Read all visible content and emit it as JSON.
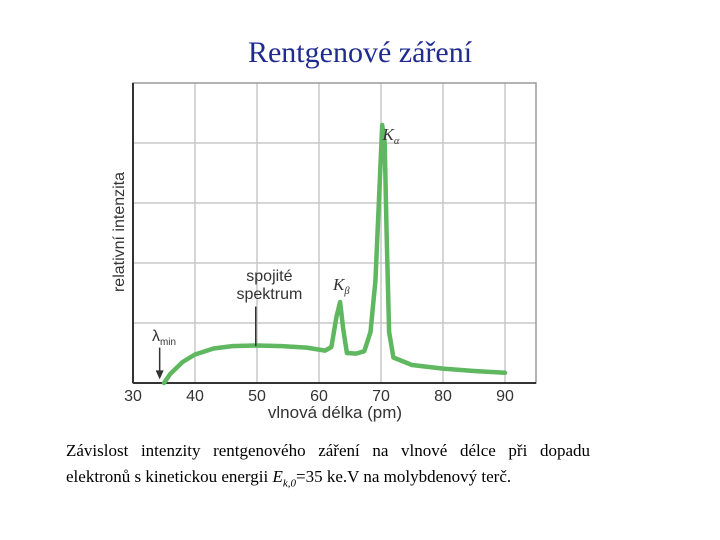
{
  "title": "Rentgenové záření",
  "chart_data": {
    "type": "line",
    "xlabel": "vlnová délka (pm)",
    "ylabel": "relativní intenzita",
    "xlim": [
      30,
      95
    ],
    "ylim": [
      0,
      100
    ],
    "x_ticks": [
      "30",
      "40",
      "50",
      "60",
      "70",
      "80",
      "90"
    ],
    "grid": true,
    "series": [
      {
        "color": "#5fb760",
        "points": [
          [
            35,
            0
          ],
          [
            36,
            3
          ],
          [
            38,
            7
          ],
          [
            40,
            9.5
          ],
          [
            43,
            11.5
          ],
          [
            46,
            12.3
          ],
          [
            50,
            12.5
          ],
          [
            54,
            12.3
          ],
          [
            58,
            11.8
          ],
          [
            61,
            10.8
          ],
          [
            62,
            12
          ],
          [
            62.8,
            22
          ],
          [
            63.4,
            27
          ],
          [
            63.9,
            18
          ],
          [
            64.5,
            10
          ],
          [
            66,
            9.8
          ],
          [
            67.3,
            10.6
          ],
          [
            68.3,
            17
          ],
          [
            69.1,
            34
          ],
          [
            69.7,
            62
          ],
          [
            70.2,
            86
          ],
          [
            70.6,
            80
          ],
          [
            70.9,
            50
          ],
          [
            71.3,
            17
          ],
          [
            72,
            8.5
          ],
          [
            75,
            6
          ],
          [
            80,
            4.8
          ],
          [
            85,
            4
          ],
          [
            90,
            3.4
          ]
        ]
      }
    ],
    "annotations": [
      {
        "text": "spojité",
        "x": 52,
        "y": 34
      },
      {
        "text": "spektrum",
        "x": 52,
        "y": 28
      },
      {
        "text": "λ",
        "sub": "min",
        "x": 35,
        "y": 14
      },
      {
        "text": "K",
        "sub": "β",
        "x": 63.6,
        "y": 31
      },
      {
        "text": "K",
        "sub": "α",
        "x": 71.6,
        "y": 81
      }
    ]
  },
  "caption": {
    "part1": "Závislost intenzity rentgenového záření na vlnové délce při dopadu elektronů s kinetickou energii ",
    "energy_symbol": "E",
    "energy_subscript": "k,0",
    "part2": "=35 ke.V na molybdenový terč."
  }
}
